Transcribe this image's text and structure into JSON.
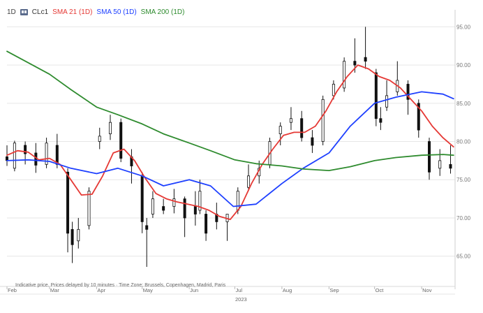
{
  "legend": {
    "timeframe": "1D",
    "symbol": "CLc1",
    "sma21_label": "SMA 21 (1D)",
    "sma50_label": "SMA 50 (1D)",
    "sma200_label": "SMA 200 (1D)"
  },
  "footer": {
    "note": "Indicative price. Prices delayed by 10 minutes · Time Zone: Brussels, Copenhagen, Madrid, Paris",
    "year": "2023"
  },
  "colors": {
    "sma21": "#e53935",
    "sma50": "#1e40ff",
    "sma200": "#2e8b2e",
    "candle": "#111111",
    "grid": "#e6e6e6"
  },
  "chart_data": {
    "type": "line",
    "title": "",
    "xlabel": "",
    "ylabel": "",
    "ylim": [
      62.5,
      96.5
    ],
    "y_ticks": [
      "65.00",
      "70.00",
      "75.00",
      "80.00",
      "85.00",
      "90.00",
      "95.00"
    ],
    "x_ticks": [
      "Feb",
      "Mar",
      "Apr",
      "May",
      "Jun",
      "Jul",
      "Aug",
      "Sep",
      "Oct",
      "Nov"
    ],
    "x_range": [
      "2023-02-01",
      "2023-11-23"
    ],
    "grid": true,
    "candles": [
      [
        "2023-02-01",
        78.0,
        79.5,
        76.8,
        77.5
      ],
      [
        "2023-02-06",
        76.5,
        80.1,
        76.1,
        79.8
      ],
      [
        "2023-02-13",
        79.5,
        80.0,
        77.0,
        78.4
      ],
      [
        "2023-02-20",
        78.5,
        79.8,
        75.9,
        76.9
      ],
      [
        "2023-02-27",
        77.0,
        80.5,
        76.5,
        79.8
      ],
      [
        "2023-03-06",
        79.5,
        81.0,
        76.5,
        77.0
      ],
      [
        "2023-03-13",
        76.0,
        76.5,
        65.5,
        68.0
      ],
      [
        "2023-03-16",
        68.5,
        69.5,
        64.1,
        66.5
      ],
      [
        "2023-03-20",
        67.0,
        70.0,
        66.0,
        68.5
      ],
      [
        "2023-03-27",
        69.0,
        74.0,
        68.5,
        73.5
      ],
      [
        "2023-04-03",
        80.0,
        81.8,
        79.0,
        80.7
      ],
      [
        "2023-04-10",
        81.0,
        83.5,
        80.2,
        82.5
      ],
      [
        "2023-04-17",
        82.5,
        83.0,
        77.3,
        77.8
      ],
      [
        "2023-04-24",
        78.0,
        79.0,
        74.5,
        76.8
      ],
      [
        "2023-05-01",
        75.5,
        76.0,
        68.0,
        69.5
      ],
      [
        "2023-05-04",
        69.0,
        70.0,
        63.6,
        68.5
      ],
      [
        "2023-05-08",
        70.5,
        73.5,
        70.0,
        72.5
      ],
      [
        "2023-05-15",
        71.5,
        72.5,
        70.5,
        71.0
      ],
      [
        "2023-05-22",
        71.5,
        73.8,
        70.6,
        72.5
      ],
      [
        "2023-05-29",
        72.5,
        72.8,
        67.5,
        70.0
      ],
      [
        "2023-06-05",
        71.5,
        73.5,
        69.0,
        70.5
      ],
      [
        "2023-06-08",
        71.0,
        75.0,
        70.5,
        73.5
      ],
      [
        "2023-06-12",
        70.5,
        71.0,
        67.0,
        68.0
      ],
      [
        "2023-06-19",
        70.5,
        72.0,
        68.5,
        69.5
      ],
      [
        "2023-06-26",
        69.5,
        70.5,
        67.0,
        70.5
      ],
      [
        "2023-07-03",
        71.0,
        74.0,
        70.5,
        73.5
      ],
      [
        "2023-07-10",
        74.0,
        77.0,
        73.5,
        75.5
      ],
      [
        "2023-07-17",
        75.5,
        77.5,
        74.5,
        76.5
      ],
      [
        "2023-07-24",
        77.0,
        80.5,
        76.5,
        80.0
      ],
      [
        "2023-07-31",
        81.0,
        82.5,
        79.5,
        82.0
      ],
      [
        "2023-08-07",
        82.5,
        84.5,
        81.5,
        83.0
      ],
      [
        "2023-08-14",
        83.0,
        84.0,
        80.0,
        80.5
      ],
      [
        "2023-08-21",
        80.5,
        81.5,
        78.5,
        79.5
      ],
      [
        "2023-08-28",
        80.0,
        86.0,
        79.5,
        85.5
      ],
      [
        "2023-09-04",
        86.0,
        88.0,
        85.5,
        87.5
      ],
      [
        "2023-09-11",
        87.0,
        91.0,
        86.5,
        90.5
      ],
      [
        "2023-09-18",
        90.5,
        93.5,
        89.0,
        90.0
      ],
      [
        "2023-09-25",
        91.0,
        95.0,
        89.5,
        90.5
      ],
      [
        "2023-10-02",
        89.0,
        89.5,
        82.0,
        83.0
      ],
      [
        "2023-10-05",
        83.0,
        84.5,
        81.5,
        82.5
      ],
      [
        "2023-10-09",
        84.5,
        88.0,
        84.0,
        86.0
      ],
      [
        "2023-10-16",
        86.5,
        90.5,
        86.0,
        88.0
      ],
      [
        "2023-10-23",
        87.5,
        88.0,
        83.5,
        85.5
      ],
      [
        "2023-10-30",
        85.0,
        85.5,
        80.5,
        81.5
      ],
      [
        "2023-11-06",
        80.0,
        80.5,
        75.0,
        76.0
      ],
      [
        "2023-11-13",
        76.5,
        79.0,
        75.5,
        77.5
      ],
      [
        "2023-11-20",
        77.0,
        79.5,
        75.8,
        76.5
      ]
    ],
    "series": [
      {
        "name": "SMA 21 (1D)",
        "x": [
          "2023-02-01",
          "2023-02-08",
          "2023-02-15",
          "2023-02-22",
          "2023-03-01",
          "2023-03-08",
          "2023-03-15",
          "2023-03-22",
          "2023-03-29",
          "2023-04-05",
          "2023-04-12",
          "2023-04-19",
          "2023-04-26",
          "2023-05-03",
          "2023-05-10",
          "2023-05-17",
          "2023-05-24",
          "2023-05-31",
          "2023-06-07",
          "2023-06-14",
          "2023-06-21",
          "2023-06-28",
          "2023-07-05",
          "2023-07-12",
          "2023-07-19",
          "2023-07-26",
          "2023-08-02",
          "2023-08-09",
          "2023-08-16",
          "2023-08-23",
          "2023-08-30",
          "2023-09-06",
          "2023-09-13",
          "2023-09-20",
          "2023-09-27",
          "2023-10-04",
          "2023-10-11",
          "2023-10-18",
          "2023-10-25",
          "2023-11-01",
          "2023-11-08",
          "2023-11-15",
          "2023-11-22"
        ],
        "values": [
          78.2,
          78.8,
          78.6,
          77.6,
          77.8,
          77.0,
          75.0,
          73.0,
          73.1,
          75.5,
          78.5,
          79.0,
          77.5,
          75.2,
          73.2,
          72.5,
          72.1,
          71.8,
          71.5,
          71.0,
          70.2,
          69.8,
          71.5,
          74.5,
          77.0,
          79.0,
          80.8,
          81.2,
          81.2,
          82.0,
          84.0,
          86.5,
          88.5,
          90.0,
          89.5,
          88.5,
          88.0,
          87.0,
          85.5,
          84.0,
          82.0,
          80.5,
          79.3
        ]
      },
      {
        "name": "SMA 50 (1D)",
        "x": [
          "2023-02-01",
          "2023-02-15",
          "2023-03-01",
          "2023-03-15",
          "2023-04-01",
          "2023-04-15",
          "2023-05-01",
          "2023-05-15",
          "2023-06-01",
          "2023-06-15",
          "2023-06-30",
          "2023-07-15",
          "2023-08-01",
          "2023-08-15",
          "2023-09-01",
          "2023-09-15",
          "2023-10-01",
          "2023-10-15",
          "2023-11-01",
          "2023-11-15",
          "2023-11-22"
        ],
        "values": [
          77.5,
          77.6,
          77.4,
          76.5,
          75.8,
          76.5,
          75.5,
          74.2,
          75.0,
          74.2,
          71.5,
          71.8,
          74.5,
          76.5,
          78.5,
          82.0,
          85.0,
          85.8,
          86.5,
          86.2,
          85.6
        ]
      },
      {
        "name": "SMA 200 (1D)",
        "x": [
          "2023-02-01",
          "2023-02-15",
          "2023-03-01",
          "2023-03-15",
          "2023-04-01",
          "2023-04-15",
          "2023-05-01",
          "2023-05-15",
          "2023-06-01",
          "2023-06-15",
          "2023-07-01",
          "2023-07-15",
          "2023-08-01",
          "2023-08-15",
          "2023-09-01",
          "2023-09-15",
          "2023-10-01",
          "2023-10-15",
          "2023-11-01",
          "2023-11-15",
          "2023-11-22"
        ],
        "values": [
          91.8,
          90.3,
          88.8,
          86.8,
          84.5,
          83.5,
          82.3,
          81.0,
          79.8,
          78.8,
          77.6,
          77.1,
          76.8,
          76.4,
          76.2,
          76.7,
          77.5,
          77.9,
          78.2,
          78.3,
          78.2
        ]
      }
    ]
  }
}
